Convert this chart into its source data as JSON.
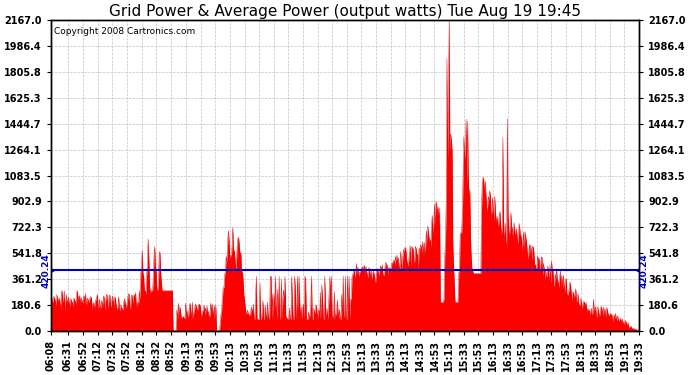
{
  "title": "Grid Power & Average Power (output watts) Tue Aug 19 19:45",
  "copyright": "Copyright 2008 Cartronics.com",
  "avg_power": 420.24,
  "y_max": 2167.0,
  "y_ticks": [
    0.0,
    180.6,
    361.2,
    541.8,
    722.3,
    902.9,
    1083.5,
    1264.1,
    1444.7,
    1625.3,
    1805.8,
    1986.4,
    2167.0
  ],
  "avg_line_color": "#0000bb",
  "fill_color": "#ff0000",
  "line_color": "#dd0000",
  "bg_color": "#ffffff",
  "plot_bg_color": "#ffffff",
  "grid_color": "#bbbbbb",
  "title_fontsize": 11,
  "copyright_fontsize": 6.5,
  "tick_fontsize": 7,
  "avg_label_fontsize": 6.5,
  "x_tick_labels": [
    "06:08",
    "06:31",
    "06:52",
    "07:12",
    "07:32",
    "07:52",
    "08:12",
    "08:32",
    "08:52",
    "09:13",
    "09:33",
    "09:53",
    "10:13",
    "10:33",
    "10:53",
    "11:13",
    "11:33",
    "11:53",
    "12:13",
    "12:33",
    "12:53",
    "13:13",
    "13:33",
    "13:53",
    "14:13",
    "14:33",
    "14:53",
    "15:13",
    "15:33",
    "15:53",
    "16:13",
    "16:33",
    "16:53",
    "17:13",
    "17:33",
    "17:53",
    "18:13",
    "18:33",
    "18:53",
    "19:13",
    "19:33"
  ]
}
